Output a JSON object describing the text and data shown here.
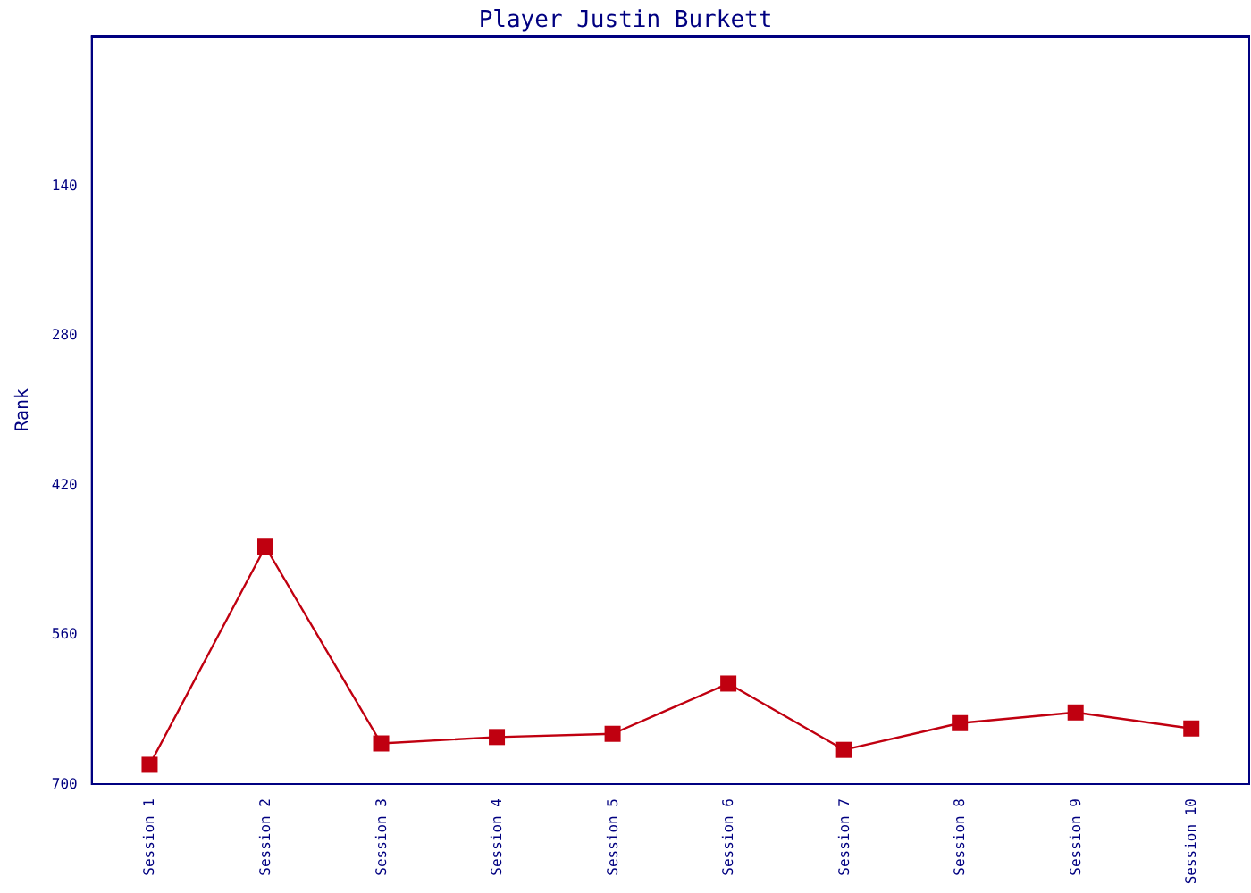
{
  "chart_data": {
    "type": "line",
    "title": "Player Justin Burkett",
    "ylabel": "Rank",
    "categories": [
      "Session 1",
      "Session 2",
      "Session 3",
      "Session 4",
      "Session 5",
      "Session 6",
      "Session 7",
      "Session 8",
      "Session 9",
      "Session 10"
    ],
    "series": [
      {
        "color": "#c00010",
        "values": [
          682,
          478,
          662,
          656,
          653,
          606,
          668,
          643,
          633,
          648
        ]
      }
    ],
    "ylim": [
      700,
      0
    ],
    "yticks": [
      140,
      280,
      420,
      560,
      700
    ],
    "grid": false,
    "marker": "square",
    "line_style": "solid"
  }
}
